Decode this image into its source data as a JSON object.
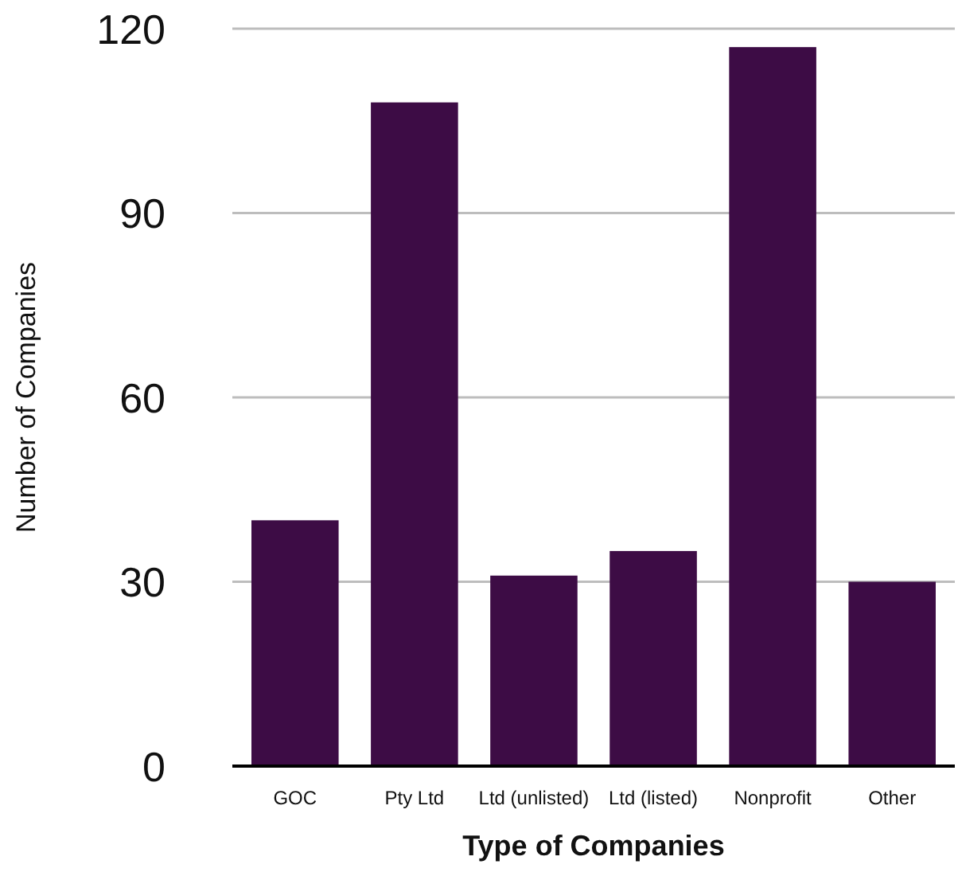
{
  "chart_data": {
    "type": "bar",
    "xlabel": "Type of Companies",
    "ylabel": "Number of Companies",
    "categories": [
      "GOC",
      "Pty Ltd",
      "Ltd (unlisted)",
      "Ltd (listed)",
      "Nonprofit",
      "Other"
    ],
    "values": [
      40,
      108,
      31,
      35,
      117,
      30
    ],
    "color": "#3d0c45",
    "ylim": [
      0,
      120
    ],
    "yticks": [
      0,
      30,
      60,
      90,
      120
    ],
    "grid": "y"
  }
}
